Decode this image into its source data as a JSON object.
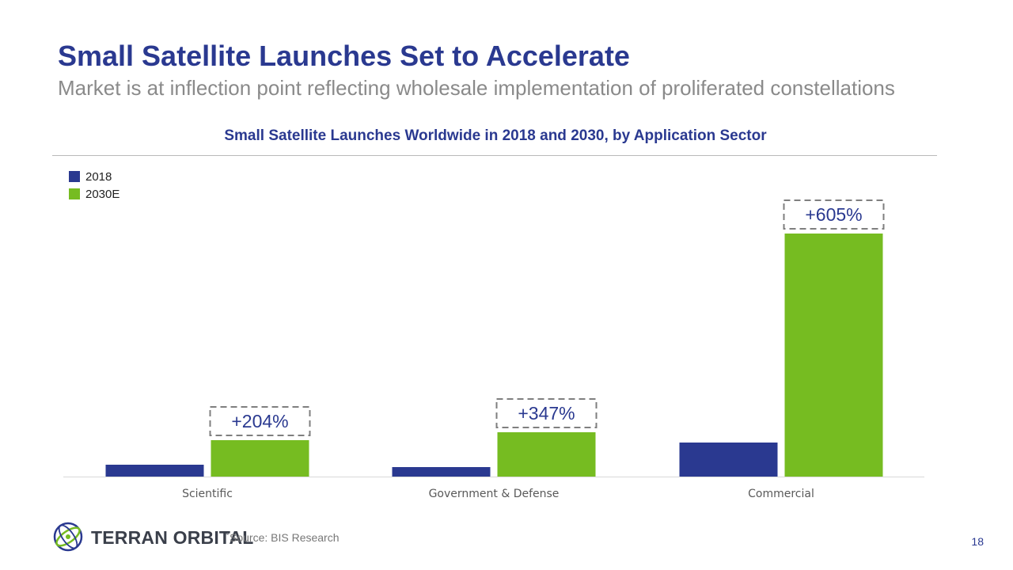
{
  "header": {
    "title": "Small Satellite Launches Set to Accelerate",
    "subtitle": "Market is at inflection point reflecting wholesale implementation of proliferated constellations"
  },
  "chart_data": {
    "type": "bar",
    "title": "Small Satellite Launches Worldwide in 2018 and 2030, by Application Sector",
    "categories": [
      "Scientific",
      "Government & Defense",
      "Commercial"
    ],
    "series": [
      {
        "name": "2018",
        "color": "#2a3990",
        "values": [
          15,
          12,
          43
        ]
      },
      {
        "name": "2030E",
        "color": "#76bc21",
        "values": [
          46,
          56,
          307
        ]
      }
    ],
    "annotations": [
      "+204%",
      "+347%",
      "+605%"
    ],
    "ylim": [
      0,
      320
    ],
    "grid": false,
    "legend_position": "top-left",
    "xlabel": "",
    "ylabel": ""
  },
  "footer": {
    "brand": "TERRAN ORBITAL",
    "trademark": "™",
    "source": "Source: BIS Research",
    "page_number": "18",
    "logo_icon": "terran-orbital-globe-icon"
  }
}
